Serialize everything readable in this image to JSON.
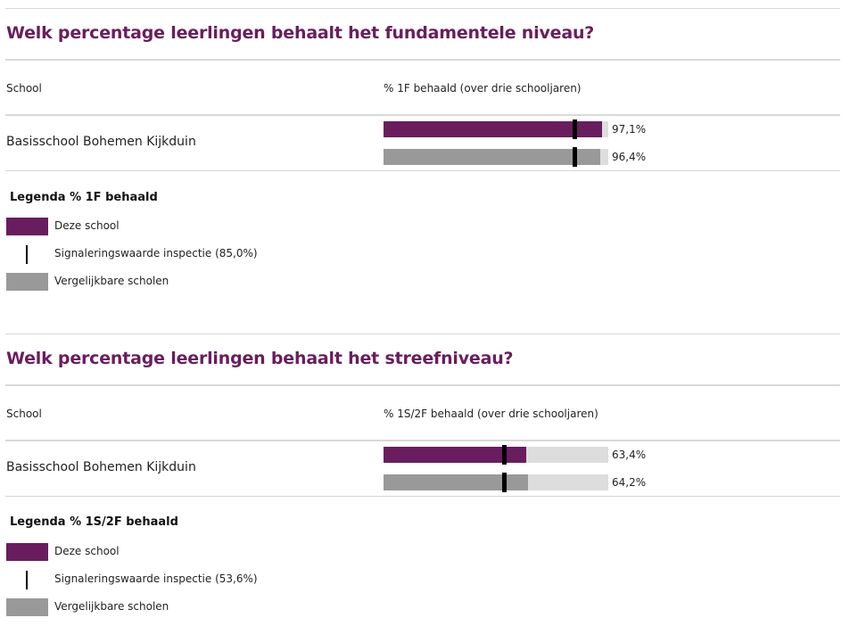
{
  "colors": {
    "school": "#6a1d5e",
    "comparable": "#999999",
    "track": "#dddddd",
    "marker": "#000000",
    "title": "#6a1d5e"
  },
  "sections": [
    {
      "title": "Welk percentage leerlingen behaalt het fundamentele niveau?",
      "col_school": "School",
      "col_metric": "% 1F behaald (over drie schooljaren)",
      "school_name": "Basisschool Bohemen Kijkduin",
      "school_value_label": "97,1%",
      "comparable_value_label": "96,4%",
      "legend_title": "Legenda % 1F behaald",
      "legend_school": "Deze school",
      "legend_marker": "Signaleringswaarde inspectie (85,0%)",
      "legend_comparable": "Vergelijkbare scholen"
    },
    {
      "title": "Welk percentage leerlingen behaalt het streefniveau?",
      "col_school": "School",
      "col_metric": "% 1S/2F behaald (over drie schooljaren)",
      "school_name": "Basisschool Bohemen Kijkduin",
      "school_value_label": "63,4%",
      "comparable_value_label": "64,2%",
      "legend_title": "Legenda % 1S/2F behaald",
      "legend_school": "Deze school",
      "legend_marker": "Signaleringswaarde inspectie (53,6%)",
      "legend_comparable": "Vergelijkbare scholen"
    }
  ],
  "chart_data": [
    {
      "type": "bar",
      "title": "Welk percentage leerlingen behaalt het fundamentele niveau?",
      "categories": [
        "Basisschool Bohemen Kijkduin"
      ],
      "series": [
        {
          "name": "Deze school",
          "values": [
            97.1
          ]
        },
        {
          "name": "Vergelijkbare scholen",
          "values": [
            96.4
          ]
        }
      ],
      "reference_line": {
        "name": "Signaleringswaarde inspectie",
        "value": 85.0
      },
      "xlim": [
        0,
        100
      ]
    },
    {
      "type": "bar",
      "title": "Welk percentage leerlingen behaalt het streefniveau?",
      "categories": [
        "Basisschool Bohemen Kijkduin"
      ],
      "series": [
        {
          "name": "Deze school",
          "values": [
            63.4
          ]
        },
        {
          "name": "Vergelijkbare scholen",
          "values": [
            64.2
          ]
        }
      ],
      "reference_line": {
        "name": "Signaleringswaarde inspectie",
        "value": 53.6
      },
      "xlim": [
        0,
        100
      ]
    }
  ]
}
